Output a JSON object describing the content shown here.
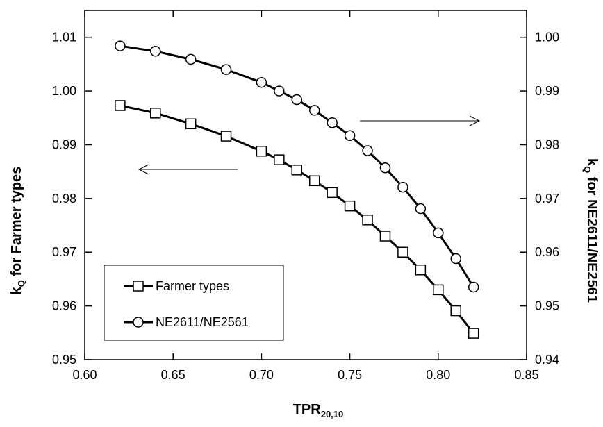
{
  "chart_data": {
    "type": "line",
    "xlabel": {
      "main": "TPR",
      "sub": "20,10"
    },
    "ylabel_left": {
      "main": "k",
      "sub": "Q",
      "rest": " for Farmer types"
    },
    "ylabel_right": {
      "main": "k",
      "sub": "Q",
      "rest": " for NE2611/NE2561"
    },
    "xlim": [
      0.6,
      0.85
    ],
    "ylim_left": [
      0.95,
      1.015
    ],
    "ylim_right": [
      0.94,
      1.005
    ],
    "x_ticks": [
      "0.60",
      "0.65",
      "0.70",
      "0.75",
      "0.80",
      "0.85"
    ],
    "y_left_ticks": [
      "0.95",
      "0.96",
      "0.97",
      "0.98",
      "0.99",
      "1.00",
      "1.01"
    ],
    "y_right_ticks": [
      "0.94",
      "0.95",
      "0.96",
      "0.97",
      "0.98",
      "0.99",
      "1.00"
    ],
    "grid": false,
    "legend_position": "bottom-left",
    "series": [
      {
        "name": "Farmer types",
        "axis": "left",
        "marker": "square",
        "x": [
          0.62,
          0.64,
          0.66,
          0.68,
          0.7,
          0.71,
          0.72,
          0.73,
          0.74,
          0.75,
          0.76,
          0.77,
          0.78,
          0.79,
          0.8,
          0.81,
          0.82
        ],
        "y": [
          0.9973,
          0.9959,
          0.9939,
          0.9916,
          0.9888,
          0.9872,
          0.9853,
          0.9833,
          0.9811,
          0.9786,
          0.976,
          0.973,
          0.97,
          0.9667,
          0.963,
          0.9591,
          0.9549
        ]
      },
      {
        "name": "NE2611/NE2561",
        "axis": "right",
        "marker": "circle",
        "x": [
          0.62,
          0.64,
          0.66,
          0.68,
          0.7,
          0.71,
          0.72,
          0.73,
          0.74,
          0.75,
          0.76,
          0.77,
          0.78,
          0.79,
          0.8,
          0.81,
          0.82
        ],
        "y": [
          0.9984,
          0.9974,
          0.9959,
          0.994,
          0.9916,
          0.99,
          0.9884,
          0.9864,
          0.9841,
          0.9817,
          0.9789,
          0.9757,
          0.9721,
          0.9681,
          0.9636,
          0.9588,
          0.9535
        ]
      }
    ],
    "annotations": [
      {
        "type": "arrow",
        "direction": "left",
        "points_to": "left axis"
      },
      {
        "type": "arrow",
        "direction": "right",
        "points_to": "right axis"
      }
    ]
  }
}
